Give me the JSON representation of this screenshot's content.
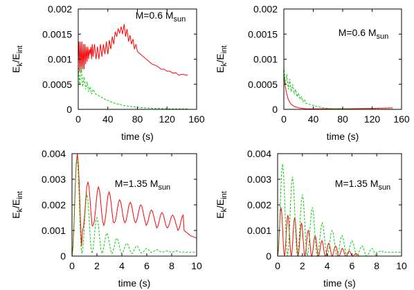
{
  "chart_data": [
    {
      "type": "line",
      "panel": "top-left",
      "annotation": {
        "text": "M=0.6 M",
        "subscript": "sun"
      },
      "xlabel": "time (s)",
      "ylabel": {
        "text": "E",
        "sub1": "k",
        "mid": "/E",
        "sub2": "int"
      },
      "xlim": [
        0,
        160
      ],
      "ylim": [
        0,
        0.002
      ],
      "xticks": [
        "0",
        "40",
        "80",
        "120",
        "160"
      ],
      "yticks": [
        "0",
        "0.0005",
        "0.001",
        "0.0015",
        "0.002"
      ],
      "series": [
        {
          "color": "#ff0000",
          "dash": "solid",
          "x": [
            0,
            1,
            2,
            3,
            4,
            5,
            6,
            7,
            8,
            9,
            10,
            11,
            12,
            13,
            14,
            15,
            16,
            17,
            18,
            19,
            20,
            22,
            24,
            26,
            28,
            30,
            32,
            34,
            36,
            38,
            40,
            42,
            44,
            46,
            48,
            50,
            52,
            54,
            56,
            58,
            60,
            62,
            64,
            66,
            68,
            70,
            72,
            74,
            76,
            78,
            80,
            84,
            88,
            92,
            96,
            100,
            104,
            108,
            112,
            116,
            120,
            124,
            128,
            132,
            136,
            140,
            144,
            148
          ],
          "y": [
            0.0009,
            0.00135,
            0.00075,
            0.00135,
            0.00075,
            0.00135,
            0.0008,
            0.0013,
            0.0008,
            0.0013,
            0.0009,
            0.00125,
            0.00095,
            0.00125,
            0.001,
            0.0012,
            0.0011,
            0.00125,
            0.001,
            0.0013,
            0.00105,
            0.0013,
            0.001,
            0.00125,
            0.001,
            0.0013,
            0.00105,
            0.0013,
            0.0011,
            0.00135,
            0.0011,
            0.00138,
            0.0012,
            0.00145,
            0.0013,
            0.00155,
            0.00145,
            0.0016,
            0.00152,
            0.00165,
            0.0015,
            0.0017,
            0.00145,
            0.0016,
            0.00135,
            0.00148,
            0.0013,
            0.0014,
            0.0012,
            0.0013,
            0.00115,
            0.0011,
            0.00105,
            0.001,
            0.00095,
            0.0009,
            0.00088,
            0.00085,
            0.0008,
            0.0008,
            0.00076,
            0.00076,
            0.00072,
            0.00073,
            0.00068,
            0.0007,
            0.00069,
            0.00068
          ]
        },
        {
          "color": "#00cc00",
          "dash": "dashed",
          "x": [
            0,
            2,
            4,
            6,
            8,
            10,
            12,
            14,
            16,
            18,
            20,
            24,
            28,
            32,
            36,
            40,
            44,
            48,
            52,
            56,
            60,
            70,
            80,
            90,
            100,
            110,
            120,
            130,
            140,
            148
          ],
          "y": [
            0.0009,
            0.0005,
            0.00085,
            0.00045,
            0.00065,
            0.0004,
            0.00055,
            0.00035,
            0.00045,
            0.0003,
            0.0004,
            0.0003,
            0.00027,
            0.00024,
            0.0002,
            0.00018,
            0.00015,
            0.00013,
            0.00011,
            0.0001,
            8e-05,
            6e-05,
            4e-05,
            3e-05,
            2e-05,
            2e-05,
            1e-05,
            1e-05,
            1e-05,
            1e-05
          ]
        }
      ]
    },
    {
      "type": "line",
      "panel": "top-right",
      "annotation": {
        "text": "M=0.6 M",
        "subscript": "sun"
      },
      "xlabel": "time (s)",
      "ylabel": {
        "text": "E",
        "sub1": "k",
        "mid": "/E",
        "sub2": "int"
      },
      "xlim": [
        0,
        160
      ],
      "ylim": [
        0,
        0.002
      ],
      "xticks": [
        "0",
        "40",
        "80",
        "120",
        "160"
      ],
      "yticks": [
        "0",
        "0.0005",
        "0.001",
        "0.0015",
        "0.002"
      ],
      "series": [
        {
          "color": "#ff0000",
          "dash": "solid",
          "x": [
            0,
            2,
            4,
            6,
            8,
            10,
            12,
            14,
            16,
            18,
            20,
            25,
            30,
            40,
            60,
            80,
            100,
            120,
            148
          ],
          "y": [
            0.0007,
            0.00045,
            0.0003,
            0.0002,
            0.00014,
            0.0001,
            8e-05,
            6e-05,
            5e-05,
            4e-05,
            3e-05,
            2e-05,
            1e-05,
            1e-05,
            1.2e-05,
            1.2e-05,
            1.5e-05,
            2e-05,
            3e-05
          ]
        },
        {
          "color": "#00cc00",
          "dash": "dashed",
          "x": [
            0,
            2,
            4,
            6,
            8,
            10,
            12,
            14,
            16,
            18,
            20,
            22,
            24,
            26,
            28,
            30,
            35,
            40,
            45,
            50,
            60,
            70,
            80,
            100,
            120,
            148
          ],
          "y": [
            0.00085,
            0.0005,
            0.0007,
            0.0004,
            0.0006,
            0.00035,
            0.0005,
            0.0003,
            0.0004,
            0.00025,
            0.00032,
            0.0002,
            0.00025,
            0.00015,
            0.0002,
            0.00012,
            0.0001,
            8e-05,
            6e-05,
            4e-05,
            2e-05,
            1e-05,
            1e-05,
            5e-06,
            5e-06,
            5e-06
          ]
        }
      ]
    },
    {
      "type": "line",
      "panel": "bottom-left",
      "annotation": {
        "text": "M=1.35 M",
        "subscript": "sun"
      },
      "xlabel": "time (s)",
      "ylabel": {
        "text": "E",
        "sub1": "k",
        "mid": "/E",
        "sub2": "int"
      },
      "xlim": [
        0,
        10
      ],
      "ylim": [
        0,
        0.004
      ],
      "xticks": [
        "0",
        "2",
        "4",
        "6",
        "8",
        "10"
      ],
      "yticks": [
        "0",
        "0.001",
        "0.002",
        "0.003",
        "0.004"
      ],
      "series": [
        {
          "color": "#ff0000",
          "dash": "solid",
          "kind": "oscillation",
          "period": 0.85,
          "amp_peaks": [
            0.004,
            0.0029,
            0.0027,
            0.0025,
            0.0022,
            0.0021,
            0.002,
            0.0018,
            0.0017,
            0.0016,
            0.0016,
            0.0015
          ],
          "baseline": [
            0.0,
            0.001,
            0.0012,
            0.0012,
            0.0013,
            0.0013,
            0.0013,
            0.0012,
            0.0011,
            0.0011,
            0.001,
            0.0009
          ],
          "tail_x": [
            9.0,
            9.5,
            10.0
          ],
          "tail_y": [
            0.001,
            0.0008,
            0.0007
          ]
        },
        {
          "color": "#00cc00",
          "dash": "dashed",
          "kind": "oscillation",
          "period": 0.8,
          "amp_peaks": [
            0.0038,
            0.0024,
            0.0015,
            0.0009,
            0.0007,
            0.0005,
            0.0004,
            0.0003,
            0.00025,
            0.0002,
            0.0002,
            0.0002
          ],
          "baseline": [
            0.0,
            0.0001,
            0.0001,
            0.0001,
            0.0001,
            0.0001,
            0.0001,
            0.00012,
            0.00015,
            0.00015,
            0.00015,
            0.00015
          ],
          "tail_x": [
            9.0,
            10.0
          ],
          "tail_y": [
            0.00015,
            0.00015
          ]
        }
      ]
    },
    {
      "type": "line",
      "panel": "bottom-right",
      "annotation": {
        "text": "M=1.35 M",
        "subscript": "sun"
      },
      "xlabel": "time (s)",
      "ylabel": {
        "text": "E",
        "sub1": "k",
        "mid": "/E",
        "sub2": "int"
      },
      "xlim": [
        0,
        10
      ],
      "ylim": [
        0,
        0.004
      ],
      "xticks": [
        "0",
        "2",
        "4",
        "6",
        "8",
        "10"
      ],
      "yticks": [
        "0",
        "0.001",
        "0.002",
        "0.003",
        "0.004"
      ],
      "series": [
        {
          "color": "#ff0000",
          "dash": "solid",
          "kind": "oscillation",
          "period": 0.55,
          "amp_peaks": [
            0.0019,
            0.0016,
            0.0015,
            0.0013,
            0.001,
            0.0008,
            0.0006,
            0.0005,
            0.0004,
            0.0003,
            0.0002,
            0.0001
          ],
          "baseline": [
            0.0,
            0.0,
            0.0,
            0.0,
            0.0,
            0.0,
            0.0,
            0.0,
            0.0,
            0.0,
            0.0,
            0.0
          ],
          "tail_x": [
            6.6
          ],
          "tail_y": [
            0.0
          ]
        },
        {
          "color": "#00cc00",
          "dash": "dashed",
          "kind": "oscillation",
          "period": 0.8,
          "amp_peaks": [
            0.0036,
            0.0031,
            0.0024,
            0.0019,
            0.0013,
            0.001,
            0.0008,
            0.0006,
            0.0004,
            0.0003,
            0.0002,
            0.0002
          ],
          "baseline": [
            0.0,
            0.0,
            0.0,
            0.0,
            0.0,
            0.0,
            0.0,
            0.0,
            0.0,
            0.0,
            0.00015,
            0.00015
          ],
          "tail_x": [
            8.5,
            10.0
          ],
          "tail_y": [
            0.00015,
            0.00015
          ]
        }
      ]
    }
  ]
}
